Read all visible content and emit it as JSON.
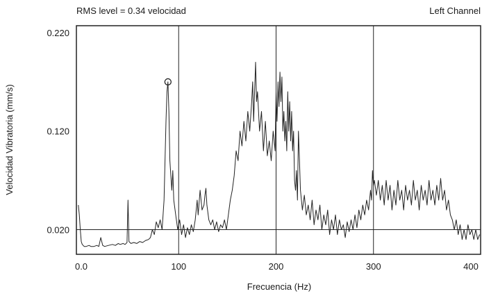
{
  "chart_data": {
    "type": "line",
    "rms_label": "RMS level = 0.34 velocidad",
    "channel_label": "Left Channel",
    "xlabel": "Frecuencia (Hz)",
    "ylabel": "Velocidad Vibratoria (mm/s)",
    "xlim": [
      -5,
      410
    ],
    "ylim": [
      -0.005,
      0.227
    ],
    "x_ticks": [
      {
        "value": 0,
        "label": "0.0"
      },
      {
        "value": 100,
        "label": "100"
      },
      {
        "value": 200,
        "label": "200"
      },
      {
        "value": 300,
        "label": "300"
      },
      {
        "value": 400,
        "label": "400"
      }
    ],
    "y_ticks": [
      {
        "value": 0.02,
        "label": "0.020"
      },
      {
        "value": 0.12,
        "label": "0.120"
      },
      {
        "value": 0.22,
        "label": "0.220"
      }
    ],
    "vertical_gridlines_x": [
      100,
      200,
      300
    ],
    "horizontal_gridlines_y": [
      0.02
    ],
    "peak_marker": {
      "x": 89,
      "y": 0.17
    },
    "colors": {
      "line": "#222222",
      "axis": "#222222",
      "background": "#ffffff"
    },
    "series": [
      {
        "values": [
          [
            -3,
            0.045
          ],
          [
            -2,
            0.035
          ],
          [
            -1,
            0.02
          ],
          [
            0,
            0.008
          ],
          [
            1,
            0.005
          ],
          [
            2,
            0.004
          ],
          [
            3,
            0.003
          ],
          [
            5,
            0.003
          ],
          [
            8,
            0.004
          ],
          [
            10,
            0.003
          ],
          [
            13,
            0.003
          ],
          [
            16,
            0.004
          ],
          [
            18,
            0.003
          ],
          [
            20,
            0.012
          ],
          [
            22,
            0.004
          ],
          [
            24,
            0.003
          ],
          [
            28,
            0.004
          ],
          [
            32,
            0.005
          ],
          [
            35,
            0.004
          ],
          [
            38,
            0.006
          ],
          [
            40,
            0.005
          ],
          [
            43,
            0.006
          ],
          [
            45,
            0.005
          ],
          [
            47,
            0.007
          ],
          [
            48,
            0.05
          ],
          [
            49,
            0.008
          ],
          [
            51,
            0.006
          ],
          [
            54,
            0.007
          ],
          [
            57,
            0.006
          ],
          [
            60,
            0.008
          ],
          [
            63,
            0.007
          ],
          [
            66,
            0.009
          ],
          [
            69,
            0.01
          ],
          [
            71,
            0.012
          ],
          [
            73,
            0.02
          ],
          [
            75,
            0.015
          ],
          [
            77,
            0.028
          ],
          [
            79,
            0.022
          ],
          [
            81,
            0.03
          ],
          [
            83,
            0.02
          ],
          [
            85,
            0.05
          ],
          [
            86,
            0.09
          ],
          [
            87,
            0.13
          ],
          [
            88,
            0.16
          ],
          [
            89,
            0.17
          ],
          [
            90,
            0.14
          ],
          [
            91,
            0.09
          ],
          [
            92,
            0.075
          ],
          [
            93,
            0.06
          ],
          [
            94,
            0.08
          ],
          [
            95,
            0.05
          ],
          [
            97,
            0.035
          ],
          [
            99,
            0.02
          ],
          [
            101,
            0.03
          ],
          [
            103,
            0.015
          ],
          [
            105,
            0.025
          ],
          [
            107,
            0.012
          ],
          [
            109,
            0.022
          ],
          [
            111,
            0.015
          ],
          [
            113,
            0.025
          ],
          [
            115,
            0.018
          ],
          [
            117,
            0.03
          ],
          [
            119,
            0.05
          ],
          [
            120,
            0.035
          ],
          [
            122,
            0.06
          ],
          [
            124,
            0.04
          ],
          [
            126,
            0.045
          ],
          [
            127,
            0.055
          ],
          [
            128,
            0.062
          ],
          [
            129,
            0.045
          ],
          [
            131,
            0.03
          ],
          [
            133,
            0.025
          ],
          [
            135,
            0.03
          ],
          [
            137,
            0.02
          ],
          [
            139,
            0.028
          ],
          [
            141,
            0.018
          ],
          [
            143,
            0.025
          ],
          [
            145,
            0.022
          ],
          [
            147,
            0.03
          ],
          [
            149,
            0.02
          ],
          [
            151,
            0.035
          ],
          [
            153,
            0.05
          ],
          [
            155,
            0.06
          ],
          [
            157,
            0.075
          ],
          [
            159,
            0.1
          ],
          [
            161,
            0.09
          ],
          [
            163,
            0.12
          ],
          [
            165,
            0.105
          ],
          [
            167,
            0.13
          ],
          [
            169,
            0.11
          ],
          [
            171,
            0.14
          ],
          [
            173,
            0.12
          ],
          [
            175,
            0.15
          ],
          [
            176,
            0.17
          ],
          [
            177,
            0.13
          ],
          [
            179,
            0.19
          ],
          [
            180,
            0.15
          ],
          [
            181,
            0.16
          ],
          [
            183,
            0.12
          ],
          [
            185,
            0.14
          ],
          [
            187,
            0.1
          ],
          [
            189,
            0.13
          ],
          [
            191,
            0.095
          ],
          [
            193,
            0.11
          ],
          [
            195,
            0.09
          ],
          [
            197,
            0.12
          ],
          [
            199,
            0.1
          ],
          [
            200,
            0.16
          ],
          [
            201,
            0.13
          ],
          [
            202,
            0.17
          ],
          [
            203,
            0.145
          ],
          [
            204,
            0.18
          ],
          [
            205,
            0.15
          ],
          [
            206,
            0.175
          ],
          [
            207,
            0.12
          ],
          [
            208,
            0.14
          ],
          [
            209,
            0.11
          ],
          [
            210,
            0.13
          ],
          [
            211,
            0.1
          ],
          [
            212,
            0.16
          ],
          [
            213,
            0.12
          ],
          [
            214,
            0.15
          ],
          [
            215,
            0.11
          ],
          [
            216,
            0.14
          ],
          [
            217,
            0.1
          ],
          [
            218,
            0.12
          ],
          [
            219,
            0.07
          ],
          [
            220,
            0.06
          ],
          [
            221,
            0.08
          ],
          [
            222,
            0.05
          ],
          [
            223,
            0.12
          ],
          [
            224,
            0.09
          ],
          [
            225,
            0.06
          ],
          [
            227,
            0.04
          ],
          [
            229,
            0.055
          ],
          [
            231,
            0.035
          ],
          [
            233,
            0.045
          ],
          [
            235,
            0.03
          ],
          [
            237,
            0.05
          ],
          [
            239,
            0.025
          ],
          [
            241,
            0.04
          ],
          [
            243,
            0.03
          ],
          [
            245,
            0.045
          ],
          [
            247,
            0.02
          ],
          [
            249,
            0.035
          ],
          [
            251,
            0.025
          ],
          [
            253,
            0.04
          ],
          [
            255,
            0.015
          ],
          [
            257,
            0.03
          ],
          [
            259,
            0.02
          ],
          [
            261,
            0.035
          ],
          [
            263,
            0.015
          ],
          [
            265,
            0.03
          ],
          [
            267,
            0.02
          ],
          [
            269,
            0.025
          ],
          [
            271,
            0.012
          ],
          [
            273,
            0.028
          ],
          [
            275,
            0.018
          ],
          [
            277,
            0.03
          ],
          [
            279,
            0.02
          ],
          [
            281,
            0.035
          ],
          [
            283,
            0.022
          ],
          [
            285,
            0.04
          ],
          [
            287,
            0.03
          ],
          [
            289,
            0.045
          ],
          [
            291,
            0.035
          ],
          [
            293,
            0.05
          ],
          [
            295,
            0.04
          ],
          [
            297,
            0.06
          ],
          [
            298,
            0.05
          ],
          [
            299,
            0.08
          ],
          [
            300,
            0.065
          ],
          [
            301,
            0.07
          ],
          [
            303,
            0.055
          ],
          [
            305,
            0.07
          ],
          [
            307,
            0.05
          ],
          [
            309,
            0.065
          ],
          [
            311,
            0.045
          ],
          [
            313,
            0.07
          ],
          [
            315,
            0.05
          ],
          [
            317,
            0.065
          ],
          [
            319,
            0.04
          ],
          [
            321,
            0.06
          ],
          [
            323,
            0.045
          ],
          [
            325,
            0.07
          ],
          [
            327,
            0.05
          ],
          [
            329,
            0.06
          ],
          [
            331,
            0.04
          ],
          [
            333,
            0.065
          ],
          [
            335,
            0.05
          ],
          [
            337,
            0.06
          ],
          [
            339,
            0.045
          ],
          [
            341,
            0.07
          ],
          [
            343,
            0.05
          ],
          [
            345,
            0.06
          ],
          [
            347,
            0.04
          ],
          [
            349,
            0.065
          ],
          [
            351,
            0.05
          ],
          [
            353,
            0.06
          ],
          [
            355,
            0.045
          ],
          [
            357,
            0.07
          ],
          [
            359,
            0.05
          ],
          [
            361,
            0.06
          ],
          [
            363,
            0.045
          ],
          [
            365,
            0.065
          ],
          [
            367,
            0.05
          ],
          [
            369,
            0.072
          ],
          [
            371,
            0.05
          ],
          [
            373,
            0.06
          ],
          [
            375,
            0.04
          ],
          [
            377,
            0.05
          ],
          [
            379,
            0.035
          ],
          [
            381,
            0.03
          ],
          [
            383,
            0.02
          ],
          [
            385,
            0.03
          ],
          [
            387,
            0.015
          ],
          [
            389,
            0.025
          ],
          [
            391,
            0.01
          ],
          [
            393,
            0.02
          ],
          [
            395,
            0.01
          ],
          [
            397,
            0.025
          ],
          [
            399,
            0.015
          ],
          [
            401,
            0.02
          ],
          [
            403,
            0.01
          ],
          [
            405,
            0.02
          ],
          [
            407,
            0.01
          ],
          [
            409,
            0.015
          ]
        ]
      }
    ]
  }
}
